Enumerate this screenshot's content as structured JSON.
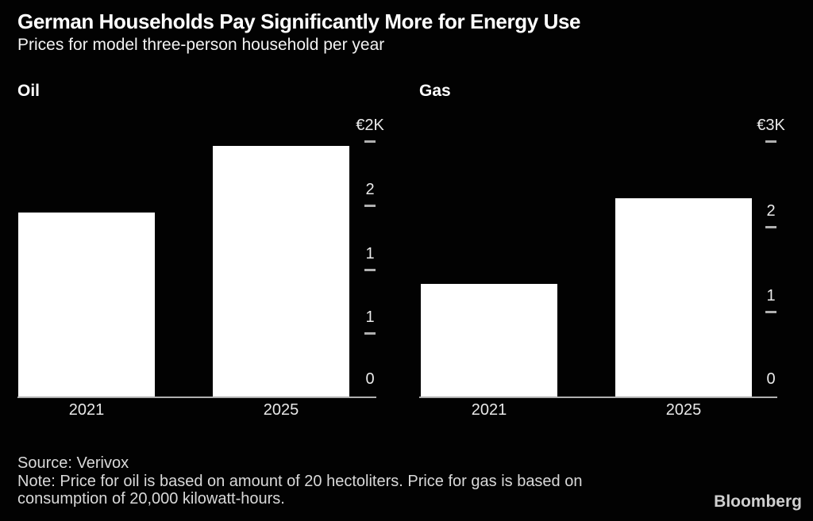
{
  "header": {
    "title": "German Households Pay Significantly More for Energy Use",
    "subtitle": "Prices for model three-person household per year"
  },
  "chart_data": [
    {
      "type": "bar",
      "title": "Oil",
      "categories": [
        "2021",
        "2025"
      ],
      "values": [
        1440,
        1960
      ],
      "currency": "EUR",
      "ylim": [
        0,
        2000
      ],
      "yticks": [
        {
          "value": 2000,
          "label": "€2K"
        },
        {
          "value": 1500,
          "label": "2"
        },
        {
          "value": 1000,
          "label": "1"
        },
        {
          "value": 500,
          "label": "1"
        },
        {
          "value": 0,
          "label": "0"
        }
      ],
      "bar_color": "#ffffff",
      "grid": false,
      "legend": false
    },
    {
      "type": "bar",
      "title": "Gas",
      "categories": [
        "2021",
        "2025"
      ],
      "values": [
        1330,
        2330
      ],
      "currency": "EUR",
      "ylim": [
        0,
        3000
      ],
      "yticks": [
        {
          "value": 3000,
          "label": "€3K"
        },
        {
          "value": 2000,
          "label": "2"
        },
        {
          "value": 1000,
          "label": "1"
        },
        {
          "value": 0,
          "label": "0"
        }
      ],
      "bar_color": "#ffffff",
      "grid": false,
      "legend": false
    }
  ],
  "footer": {
    "source": "Source: Verivox",
    "note": "Note: Price for oil is based on amount of 20 hectoliters. Price for gas is based on consumption of 20,000 kilowatt-hours.",
    "brand": "Bloomberg"
  },
  "colors": {
    "background": "#020202",
    "bar": "#ffffff",
    "axis_line": "#b0b0b0",
    "tick_text": "#eaeaea",
    "footer_text": "#d9d9d9"
  }
}
